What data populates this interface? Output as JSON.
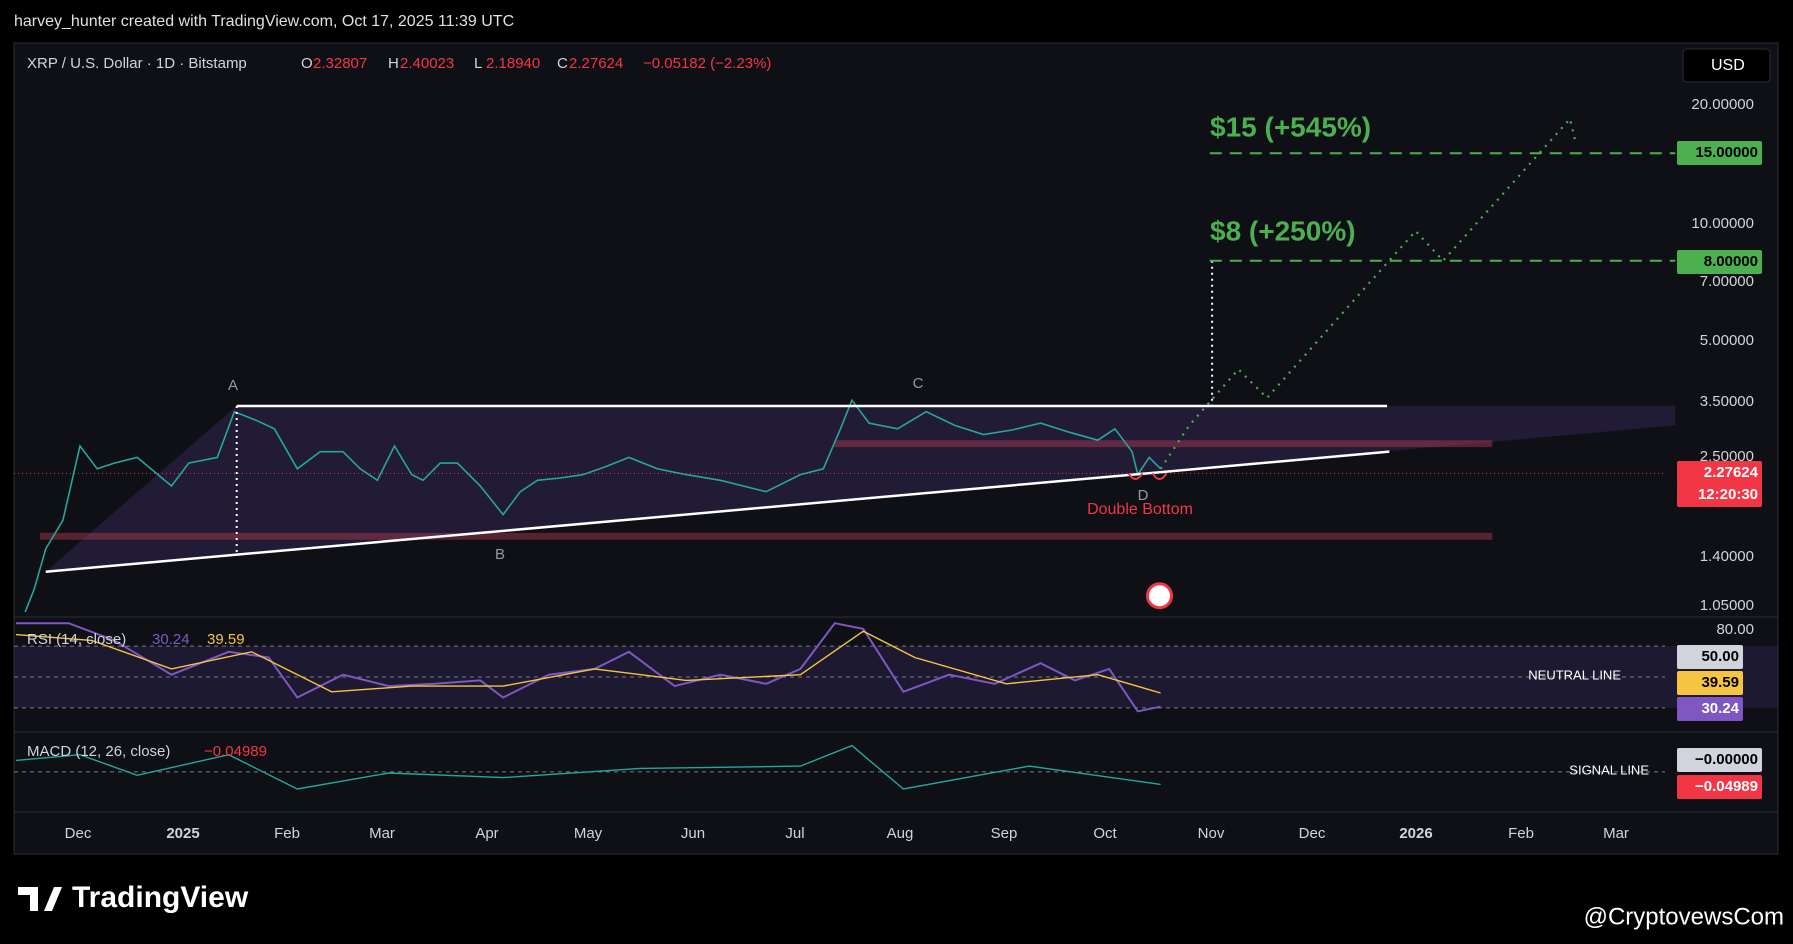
{
  "header": {
    "text": "harvey_hunter created with TradingView.com, Oct 17, 2025 11:39 UTC"
  },
  "legend": {
    "symbol": "XRP / U.S. Dollar · 1D · Bitstamp",
    "open_label": "O",
    "open": "2.32807",
    "high_label": "H",
    "high": "2.40023",
    "low_label": "L",
    "low": "2.18940",
    "close_label": "C",
    "close": "2.27624",
    "change": "−0.05182 (−2.23%)"
  },
  "currency_button": "USD",
  "price_axis": [
    "20.00000",
    "10.00000",
    "7.00000",
    "5.00000",
    "3.50000",
    "2.50000",
    "1.40000",
    "1.05000"
  ],
  "price_badges": [
    "15.00000",
    "8.00000",
    "2.27624",
    "12:20:30"
  ],
  "time_axis": [
    "Dec",
    "2025",
    "Feb",
    "Mar",
    "Apr",
    "May",
    "Jun",
    "Jul",
    "Aug",
    "Sep",
    "Oct",
    "Nov",
    "Dec",
    "2026",
    "Feb",
    "Mar"
  ],
  "annotations": {
    "target_high": "$15 (+545%)",
    "target_low": "$8 (+250%)",
    "point_a": "A",
    "point_b": "B",
    "point_c": "C",
    "point_d": "D",
    "pattern": "Double Bottom"
  },
  "rsi": {
    "label": "RSI (14, close)",
    "value": "30.24",
    "average": "39.59",
    "axis": "80.00",
    "badges": [
      "50.00",
      "39.59",
      "30.24"
    ],
    "line_label": "NEUTRAL LINE"
  },
  "macd": {
    "label": "MACD (12, 26, close)",
    "value": "−0.04989",
    "badges": [
      "−0.00000",
      "−0.04989"
    ],
    "line_label": "SIGNAL LINE"
  },
  "footer": {
    "logo": "TradingView",
    "watermark": "@CryptovewsCom"
  }
}
